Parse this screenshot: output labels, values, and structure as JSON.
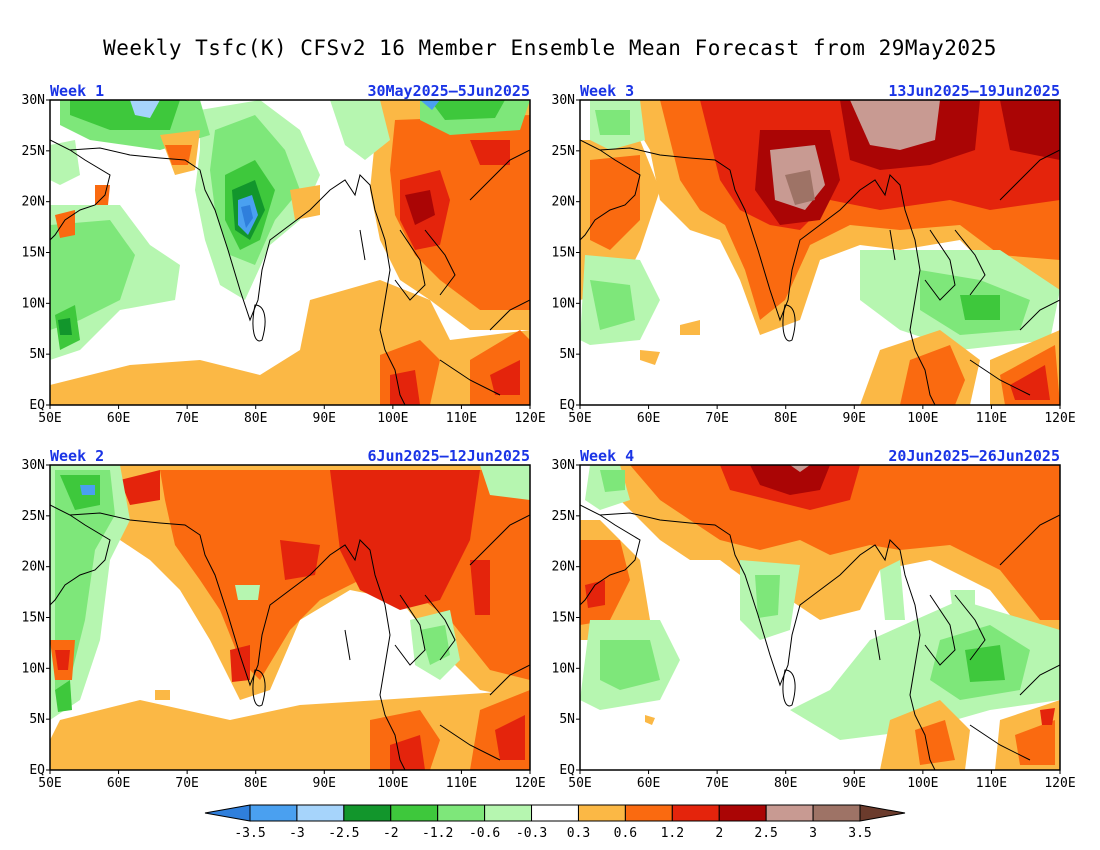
{
  "title": "Weekly Tsfc(K) CFSv2 16 Member Ensemble Mean Forecast from 29May2025",
  "panels": [
    {
      "label": "Week 1",
      "dates": "30May2025–5Jun2025"
    },
    {
      "label": "Week 3",
      "dates": "13Jun2025–19Jun2025"
    },
    {
      "label": "Week 2",
      "dates": "6Jun2025–12Jun2025"
    },
    {
      "label": "Week 4",
      "dates": "20Jun2025–26Jun2025"
    }
  ],
  "axes": {
    "lon_ticks": [
      "50E",
      "60E",
      "70E",
      "80E",
      "90E",
      "100E",
      "110E",
      "120E"
    ],
    "lat_ticks": [
      "EQ",
      "5N",
      "10N",
      "15N",
      "20N",
      "25N",
      "30N"
    ]
  },
  "colorbar": {
    "colors": [
      "#2f7fdc",
      "#4aa0f0",
      "#a6d4fb",
      "#12962c",
      "#3ec83c",
      "#7ee77a",
      "#b6f6b0",
      "#ffffff",
      "#fbb845",
      "#fa6a10",
      "#e4240c",
      "#aa0505",
      "#c89a92",
      "#9e7366",
      "#6b3b2c"
    ],
    "labels": [
      "-3.5",
      "-3",
      "-2.5",
      "-2",
      "-1.2",
      "-0.6",
      "-0.3",
      "0.3",
      "0.6",
      "1.2",
      "2",
      "2.5",
      "3",
      "3.5"
    ]
  }
}
